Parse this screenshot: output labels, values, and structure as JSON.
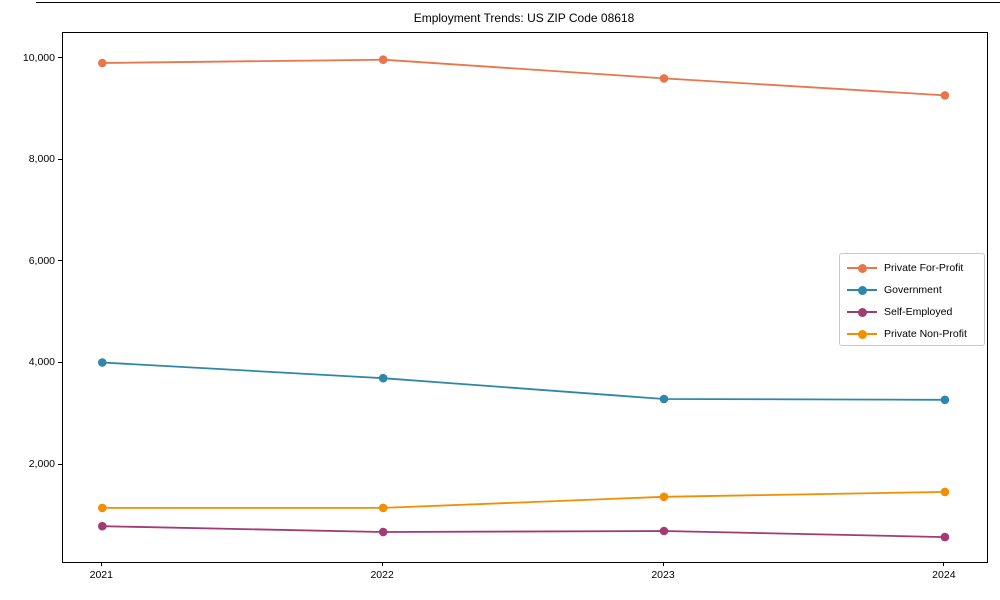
{
  "chart_data": {
    "type": "line",
    "title": "Employment Trends: US ZIP Code 08618",
    "xlabel": "",
    "ylabel": "",
    "x": [
      2021,
      2022,
      2023,
      2024
    ],
    "x_tick_labels": [
      "2021",
      "2022",
      "2023",
      "2024"
    ],
    "y_ticks": [
      2000,
      4000,
      6000,
      8000,
      10000
    ],
    "y_tick_labels": [
      "2,000",
      "4,000",
      "6,000",
      "8,000",
      "10,000"
    ],
    "xlim": [
      2020.86,
      2024.15
    ],
    "ylim": [
      90,
      10510
    ],
    "grid": false,
    "legend_position": "center right",
    "series": [
      {
        "name": "Private For-Profit",
        "color": "#e8764b",
        "values": [
          9920,
          9985,
          9615,
          9280
        ]
      },
      {
        "name": "Government",
        "color": "#2e86ab",
        "values": [
          4020,
          3710,
          3300,
          3285
        ]
      },
      {
        "name": "Self-Employed",
        "color": "#a23b72",
        "values": [
          795,
          680,
          700,
          580
        ]
      },
      {
        "name": "Private Non-Profit",
        "color": "#f18f01",
        "values": [
          1155,
          1155,
          1375,
          1470
        ]
      }
    ]
  }
}
